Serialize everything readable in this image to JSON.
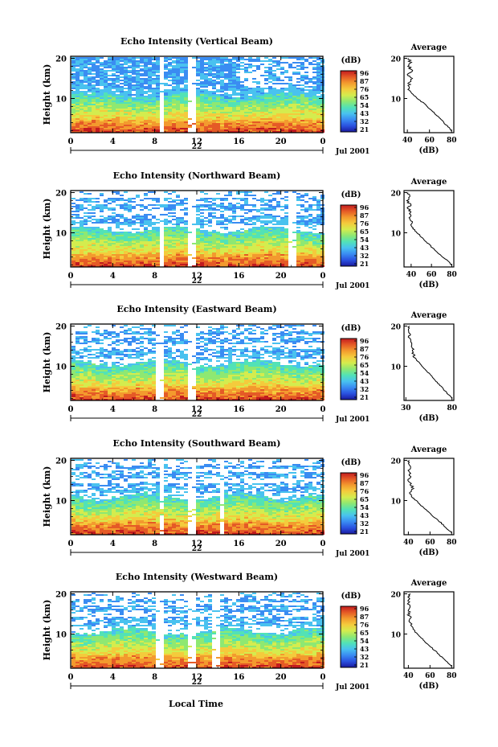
{
  "figure": {
    "xlabel": "Local Time",
    "panel_axis_label": "Height (km)",
    "colorbar_unit": "(dB)",
    "avg_title": "Average",
    "avg_xlabel": "(dB)",
    "date_label": "Jul 2001"
  },
  "chart_data": [
    {
      "type": "heatmap",
      "title": "Echo Intensity (Vertical Beam)",
      "xlabel": "",
      "ylabel": "Height (km)",
      "x_ticks": [
        "0",
        "4",
        "8",
        "12",
        "16",
        "20",
        "0"
      ],
      "x_range": [
        0,
        24
      ],
      "y_ticks": [
        "10",
        "20"
      ],
      "y_range": [
        1.5,
        20.5
      ],
      "day_label": "22",
      "colorbar": {
        "unit": "(dB)",
        "ticks": [
          "96",
          "87",
          "76",
          "65",
          "54",
          "43",
          "32",
          "21"
        ]
      },
      "profile": {
        "title": "Average",
        "xlabel": "(dB)",
        "x_ticks": [
          "40",
          "60",
          "80"
        ],
        "x_range": [
          37,
          82
        ],
        "heights": [
          2,
          3,
          4,
          5,
          6,
          7,
          8,
          9,
          10,
          11,
          12,
          13,
          14,
          15,
          16,
          17,
          18,
          19,
          20
        ],
        "values": [
          80,
          77,
          73,
          70,
          66,
          62,
          58,
          54,
          49,
          45,
          42,
          42,
          41,
          44,
          40,
          44,
          41,
          43,
          41
        ]
      }
    },
    {
      "type": "heatmap",
      "title": "Echo Intensity (Northward Beam)",
      "xlabel": "",
      "ylabel": "Height (km)",
      "x_ticks": [
        "0",
        "4",
        "8",
        "12",
        "16",
        "20",
        "0"
      ],
      "x_range": [
        0,
        24
      ],
      "y_ticks": [
        "10",
        "20"
      ],
      "y_range": [
        1.5,
        20.5
      ],
      "day_label": "22",
      "colorbar": {
        "unit": "(dB)",
        "ticks": [
          "96",
          "87",
          "76",
          "65",
          "54",
          "43",
          "32",
          "21"
        ]
      },
      "profile": {
        "title": "Average",
        "xlabel": "(dB)",
        "x_ticks": [
          "40",
          "60",
          "80"
        ],
        "x_range": [
          33,
          82
        ],
        "heights": [
          2,
          3,
          4,
          5,
          6,
          7,
          8,
          9,
          10,
          11,
          12,
          13,
          14,
          15,
          16,
          17,
          18,
          19,
          20
        ],
        "values": [
          80,
          76,
          71,
          66,
          62,
          58,
          54,
          50,
          46,
          42,
          40,
          41,
          38,
          40,
          37,
          39,
          36,
          38,
          37
        ]
      }
    },
    {
      "type": "heatmap",
      "title": "Echo Intensity (Eastward Beam)",
      "xlabel": "",
      "ylabel": "Height (km)",
      "x_ticks": [
        "0",
        "4",
        "8",
        "12",
        "16",
        "20",
        "0"
      ],
      "x_range": [
        0,
        24
      ],
      "y_ticks": [
        "10",
        "20"
      ],
      "y_range": [
        1.5,
        20.5
      ],
      "day_label": "22",
      "colorbar": {
        "unit": "(dB)",
        "ticks": [
          "96",
          "87",
          "76",
          "65",
          "54",
          "43",
          "32",
          "21"
        ]
      },
      "profile": {
        "title": "Average",
        "xlabel": "(dB)",
        "x_ticks": [
          "30",
          "80"
        ],
        "x_range": [
          28,
          82
        ],
        "heights": [
          2,
          3,
          4,
          5,
          6,
          7,
          8,
          9,
          10,
          11,
          12,
          13,
          14,
          15,
          16,
          17,
          18,
          19,
          20
        ],
        "values": [
          80,
          76,
          72,
          68,
          64,
          60,
          56,
          52,
          48,
          44,
          40,
          38,
          38,
          35,
          36,
          33,
          35,
          32,
          34
        ]
      }
    },
    {
      "type": "heatmap",
      "title": "Echo Intensity (Southward Beam)",
      "xlabel": "",
      "ylabel": "Height (km)",
      "x_ticks": [
        "0",
        "4",
        "8",
        "12",
        "16",
        "20",
        "0"
      ],
      "x_range": [
        0,
        24
      ],
      "y_ticks": [
        "10",
        "20"
      ],
      "y_range": [
        1.5,
        20.5
      ],
      "day_label": "22",
      "colorbar": {
        "unit": "(dB)",
        "ticks": [
          "96",
          "87",
          "76",
          "65",
          "54",
          "43",
          "32",
          "21"
        ]
      },
      "profile": {
        "title": "Average",
        "xlabel": "(dB)",
        "x_ticks": [
          "40",
          "60",
          "80"
        ],
        "x_range": [
          36,
          82
        ],
        "heights": [
          2,
          3,
          4,
          5,
          6,
          7,
          8,
          9,
          10,
          11,
          12,
          13,
          14,
          15,
          16,
          17,
          18,
          19,
          20
        ],
        "values": [
          80,
          76,
          72,
          68,
          63,
          59,
          55,
          51,
          47,
          43,
          41,
          45,
          42,
          40,
          43,
          40,
          42,
          40,
          41
        ]
      }
    },
    {
      "type": "heatmap",
      "title": "Echo Intensity (Westward Beam)",
      "xlabel": "Local Time",
      "ylabel": "Height (km)",
      "x_ticks": [
        "0",
        "4",
        "8",
        "12",
        "16",
        "20",
        "0"
      ],
      "x_range": [
        0,
        24
      ],
      "y_ticks": [
        "10",
        "20"
      ],
      "y_range": [
        1.5,
        20.5
      ],
      "day_label": "22",
      "colorbar": {
        "unit": "(dB)",
        "ticks": [
          "96",
          "87",
          "76",
          "65",
          "54",
          "43",
          "32",
          "21"
        ]
      },
      "profile": {
        "title": "Average",
        "xlabel": "(dB)",
        "x_ticks": [
          "40",
          "60",
          "80"
        ],
        "x_range": [
          36,
          82
        ],
        "heights": [
          2,
          3,
          4,
          5,
          6,
          7,
          8,
          9,
          10,
          11,
          12,
          13,
          14,
          15,
          16,
          17,
          18,
          19,
          20
        ],
        "values": [
          80,
          76,
          72,
          68,
          64,
          60,
          56,
          52,
          48,
          45,
          43,
          42,
          42,
          40,
          41,
          40,
          41,
          40,
          42
        ]
      }
    }
  ],
  "colors": {
    "scale": [
      "#1a1aa0",
      "#2a52e0",
      "#3a8cf2",
      "#49c2ef",
      "#52e2b6",
      "#8ee872",
      "#d4ec4e",
      "#f4cb3c",
      "#f39a2e",
      "#e55a26",
      "#c21b1f"
    ]
  }
}
